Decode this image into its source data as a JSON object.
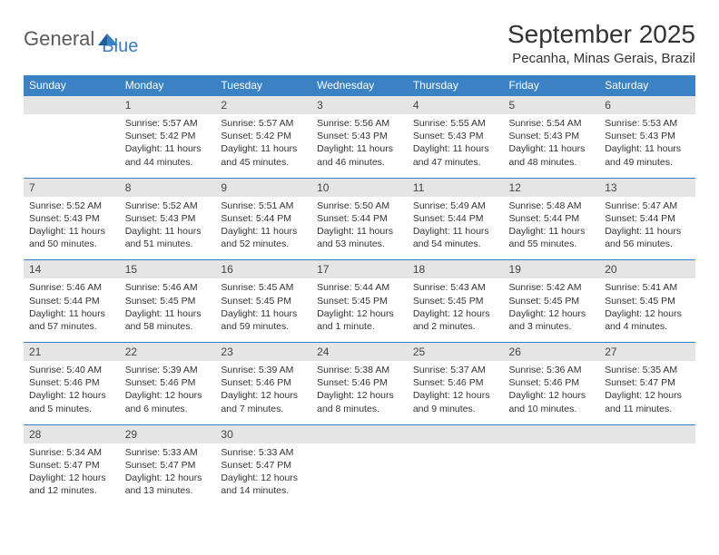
{
  "brand": {
    "word1": "General",
    "word2": "Blue"
  },
  "title": "September 2025",
  "location": "Pecanha, Minas Gerais, Brazil",
  "colors": {
    "header_bg": "#3b82c4",
    "header_fg": "#ffffff",
    "daynum_bg": "#e5e5e5",
    "rule": "#3b82c4",
    "text": "#333333",
    "logo_gray": "#5a5a5a",
    "logo_blue": "#3b7bbf"
  },
  "day_names": [
    "Sunday",
    "Monday",
    "Tuesday",
    "Wednesday",
    "Thursday",
    "Friday",
    "Saturday"
  ],
  "weeks": [
    {
      "nums": [
        "",
        "1",
        "2",
        "3",
        "4",
        "5",
        "6"
      ],
      "cells": [
        {},
        {
          "sunrise": "Sunrise: 5:57 AM",
          "sunset": "Sunset: 5:42 PM",
          "day1": "Daylight: 11 hours",
          "day2": "and 44 minutes."
        },
        {
          "sunrise": "Sunrise: 5:57 AM",
          "sunset": "Sunset: 5:42 PM",
          "day1": "Daylight: 11 hours",
          "day2": "and 45 minutes."
        },
        {
          "sunrise": "Sunrise: 5:56 AM",
          "sunset": "Sunset: 5:43 PM",
          "day1": "Daylight: 11 hours",
          "day2": "and 46 minutes."
        },
        {
          "sunrise": "Sunrise: 5:55 AM",
          "sunset": "Sunset: 5:43 PM",
          "day1": "Daylight: 11 hours",
          "day2": "and 47 minutes."
        },
        {
          "sunrise": "Sunrise: 5:54 AM",
          "sunset": "Sunset: 5:43 PM",
          "day1": "Daylight: 11 hours",
          "day2": "and 48 minutes."
        },
        {
          "sunrise": "Sunrise: 5:53 AM",
          "sunset": "Sunset: 5:43 PM",
          "day1": "Daylight: 11 hours",
          "day2": "and 49 minutes."
        }
      ]
    },
    {
      "nums": [
        "7",
        "8",
        "9",
        "10",
        "11",
        "12",
        "13"
      ],
      "cells": [
        {
          "sunrise": "Sunrise: 5:52 AM",
          "sunset": "Sunset: 5:43 PM",
          "day1": "Daylight: 11 hours",
          "day2": "and 50 minutes."
        },
        {
          "sunrise": "Sunrise: 5:52 AM",
          "sunset": "Sunset: 5:43 PM",
          "day1": "Daylight: 11 hours",
          "day2": "and 51 minutes."
        },
        {
          "sunrise": "Sunrise: 5:51 AM",
          "sunset": "Sunset: 5:44 PM",
          "day1": "Daylight: 11 hours",
          "day2": "and 52 minutes."
        },
        {
          "sunrise": "Sunrise: 5:50 AM",
          "sunset": "Sunset: 5:44 PM",
          "day1": "Daylight: 11 hours",
          "day2": "and 53 minutes."
        },
        {
          "sunrise": "Sunrise: 5:49 AM",
          "sunset": "Sunset: 5:44 PM",
          "day1": "Daylight: 11 hours",
          "day2": "and 54 minutes."
        },
        {
          "sunrise": "Sunrise: 5:48 AM",
          "sunset": "Sunset: 5:44 PM",
          "day1": "Daylight: 11 hours",
          "day2": "and 55 minutes."
        },
        {
          "sunrise": "Sunrise: 5:47 AM",
          "sunset": "Sunset: 5:44 PM",
          "day1": "Daylight: 11 hours",
          "day2": "and 56 minutes."
        }
      ]
    },
    {
      "nums": [
        "14",
        "15",
        "16",
        "17",
        "18",
        "19",
        "20"
      ],
      "cells": [
        {
          "sunrise": "Sunrise: 5:46 AM",
          "sunset": "Sunset: 5:44 PM",
          "day1": "Daylight: 11 hours",
          "day2": "and 57 minutes."
        },
        {
          "sunrise": "Sunrise: 5:46 AM",
          "sunset": "Sunset: 5:45 PM",
          "day1": "Daylight: 11 hours",
          "day2": "and 58 minutes."
        },
        {
          "sunrise": "Sunrise: 5:45 AM",
          "sunset": "Sunset: 5:45 PM",
          "day1": "Daylight: 11 hours",
          "day2": "and 59 minutes."
        },
        {
          "sunrise": "Sunrise: 5:44 AM",
          "sunset": "Sunset: 5:45 PM",
          "day1": "Daylight: 12 hours",
          "day2": "and 1 minute."
        },
        {
          "sunrise": "Sunrise: 5:43 AM",
          "sunset": "Sunset: 5:45 PM",
          "day1": "Daylight: 12 hours",
          "day2": "and 2 minutes."
        },
        {
          "sunrise": "Sunrise: 5:42 AM",
          "sunset": "Sunset: 5:45 PM",
          "day1": "Daylight: 12 hours",
          "day2": "and 3 minutes."
        },
        {
          "sunrise": "Sunrise: 5:41 AM",
          "sunset": "Sunset: 5:45 PM",
          "day1": "Daylight: 12 hours",
          "day2": "and 4 minutes."
        }
      ]
    },
    {
      "nums": [
        "21",
        "22",
        "23",
        "24",
        "25",
        "26",
        "27"
      ],
      "cells": [
        {
          "sunrise": "Sunrise: 5:40 AM",
          "sunset": "Sunset: 5:46 PM",
          "day1": "Daylight: 12 hours",
          "day2": "and 5 minutes."
        },
        {
          "sunrise": "Sunrise: 5:39 AM",
          "sunset": "Sunset: 5:46 PM",
          "day1": "Daylight: 12 hours",
          "day2": "and 6 minutes."
        },
        {
          "sunrise": "Sunrise: 5:39 AM",
          "sunset": "Sunset: 5:46 PM",
          "day1": "Daylight: 12 hours",
          "day2": "and 7 minutes."
        },
        {
          "sunrise": "Sunrise: 5:38 AM",
          "sunset": "Sunset: 5:46 PM",
          "day1": "Daylight: 12 hours",
          "day2": "and 8 minutes."
        },
        {
          "sunrise": "Sunrise: 5:37 AM",
          "sunset": "Sunset: 5:46 PM",
          "day1": "Daylight: 12 hours",
          "day2": "and 9 minutes."
        },
        {
          "sunrise": "Sunrise: 5:36 AM",
          "sunset": "Sunset: 5:46 PM",
          "day1": "Daylight: 12 hours",
          "day2": "and 10 minutes."
        },
        {
          "sunrise": "Sunrise: 5:35 AM",
          "sunset": "Sunset: 5:47 PM",
          "day1": "Daylight: 12 hours",
          "day2": "and 11 minutes."
        }
      ]
    },
    {
      "nums": [
        "28",
        "29",
        "30",
        "",
        "",
        "",
        ""
      ],
      "cells": [
        {
          "sunrise": "Sunrise: 5:34 AM",
          "sunset": "Sunset: 5:47 PM",
          "day1": "Daylight: 12 hours",
          "day2": "and 12 minutes."
        },
        {
          "sunrise": "Sunrise: 5:33 AM",
          "sunset": "Sunset: 5:47 PM",
          "day1": "Daylight: 12 hours",
          "day2": "and 13 minutes."
        },
        {
          "sunrise": "Sunrise: 5:33 AM",
          "sunset": "Sunset: 5:47 PM",
          "day1": "Daylight: 12 hours",
          "day2": "and 14 minutes."
        },
        {},
        {},
        {},
        {}
      ]
    }
  ]
}
